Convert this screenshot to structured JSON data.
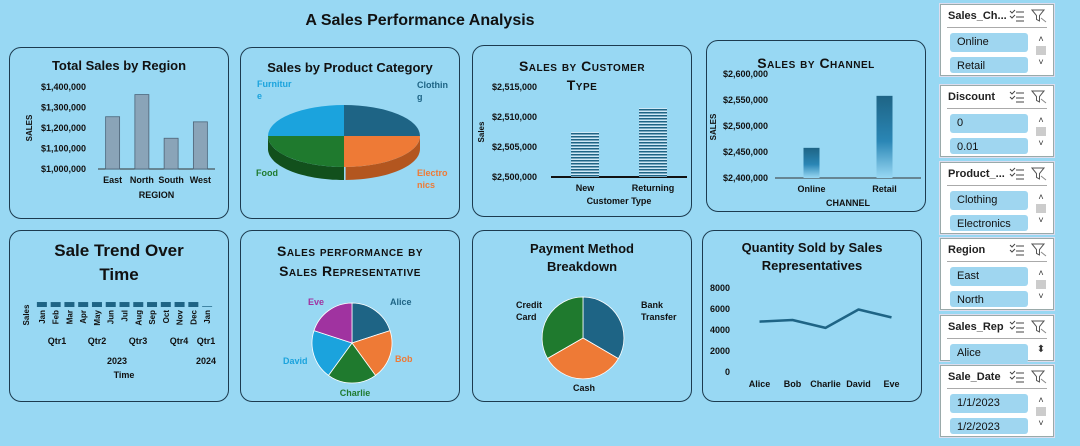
{
  "dashboard_title": "A Sales Performance Analysis",
  "colors": {
    "background": "#98d8f3",
    "bar_gray": "#8aa4b8",
    "dark_blue": "#1e6485",
    "orange": "#ee7a36",
    "green": "#1f7a2e",
    "sky": "#1ba3dd",
    "purple": "#a033a0"
  },
  "cards": {
    "region": {
      "title": "Total Sales by Region",
      "chart_data": {
        "type": "bar",
        "categories": [
          "East",
          "North",
          "South",
          "West"
        ],
        "values": [
          1255000,
          1363000,
          1150000,
          1230000
        ],
        "ylim": [
          1000000,
          1400000
        ],
        "yticks": [
          "$1,400,000",
          "$1,300,000",
          "$1,200,000",
          "$1,100,000",
          "$1,000,000"
        ],
        "xlabel": "REGION",
        "ylabel": "SALES"
      }
    },
    "product": {
      "title": "Sales by Product Category",
      "chart_data": {
        "type": "pie",
        "labels": [
          "Clothing",
          "Electronics",
          "Food",
          "Furniture"
        ],
        "label_lines": [
          [
            "Clothin",
            "g"
          ],
          [
            "Electro",
            "nics"
          ],
          [
            "Food"
          ],
          [
            "Furnitur",
            "e"
          ]
        ],
        "values": [
          25,
          25,
          25,
          25
        ],
        "colors": [
          "#1e6485",
          "#ee7a36",
          "#1f7a2e",
          "#1ba3dd"
        ]
      }
    },
    "customer": {
      "title_line1": "Sales by Customer",
      "title_line2": "Type",
      "chart_data": {
        "type": "bar",
        "categories": [
          "New",
          "Returning"
        ],
        "values": [
          2507500,
          2511500
        ],
        "ylim": [
          2500000,
          2515000
        ],
        "yticks": [
          "$2,515,000",
          "$2,510,000",
          "$2,505,000",
          "$2,500,000"
        ],
        "xlabel": "Customer Type",
        "ylabel": "Sales"
      }
    },
    "channel": {
      "title": "Sales by Channel",
      "chart_data": {
        "type": "bar",
        "categories": [
          "Online",
          "Retail"
        ],
        "values": [
          2458000,
          2558000
        ],
        "ylim": [
          2400000,
          2600000
        ],
        "yticks": [
          "$2,600,000",
          "$2,550,000",
          "$2,500,000",
          "$2,450,000",
          "$2,400,000"
        ],
        "xlabel": "CHANNEL",
        "ylabel": "SALES"
      }
    },
    "trend": {
      "title_line1": "Sale Trend Over",
      "title_line2": "Time",
      "chart_data": {
        "type": "bar",
        "categories": [
          "Jan",
          "Feb",
          "Mar",
          "Apr",
          "May",
          "Jun",
          "Jul",
          "Aug",
          "Sep",
          "Oct",
          "Nov",
          "Dec",
          "Jan"
        ],
        "values": [
          420000,
          415000,
          418000,
          417000,
          416000,
          419000,
          418000,
          415000,
          417000,
          420000,
          421000,
          418000,
          60000
        ],
        "quarters": [
          "Qtr1",
          "Qtr2",
          "Qtr3",
          "Qtr4",
          "Qtr1"
        ],
        "years": [
          "2023",
          "2024"
        ],
        "xlabel": "Time",
        "ylabel": "Sales"
      }
    },
    "rep": {
      "title_line1": "Sales performance by",
      "title_line2": "Sales Representative",
      "chart_data": {
        "type": "pie",
        "labels": [
          "Alice",
          "Bob",
          "Charlie",
          "David",
          "Eve"
        ],
        "values": [
          20,
          20,
          20,
          20,
          20
        ],
        "colors": [
          "#1e6485",
          "#ee7a36",
          "#1f7a2e",
          "#1ba3dd",
          "#a033a0"
        ]
      }
    },
    "payment": {
      "title_line1": "Payment Method",
      "title_line2": "Breakdown",
      "chart_data": {
        "type": "pie",
        "labels": [
          "Bank Transfer",
          "Cash",
          "Credit Card"
        ],
        "label_lines": [
          [
            "Bank",
            "Transfer"
          ],
          [
            "Cash"
          ],
          [
            "Credit",
            "Card"
          ]
        ],
        "values": [
          33.4,
          33.3,
          33.3
        ],
        "colors": [
          "#1e6485",
          "#ee7a36",
          "#1f7a2e"
        ]
      }
    },
    "quantity": {
      "title_line1": "Quantity Sold by Sales",
      "title_line2": "Representatives",
      "chart_data": {
        "type": "line",
        "categories": [
          "Alice",
          "Bob",
          "Charlie",
          "David",
          "Eve"
        ],
        "values": [
          4800,
          4950,
          4200,
          5950,
          5200
        ],
        "ylim": [
          0,
          8000
        ],
        "yticks": [
          "8000",
          "6000",
          "4000",
          "2000",
          "0"
        ]
      }
    }
  },
  "slicers": [
    {
      "title": "Sales_Ch...",
      "items": [
        "Online",
        "Retail"
      ]
    },
    {
      "title": "Discount",
      "items": [
        "0",
        "0.01"
      ]
    },
    {
      "title": "Product_...",
      "items": [
        "Clothing",
        "Electronics"
      ]
    },
    {
      "title": "Region",
      "items": [
        "East",
        "North"
      ]
    },
    {
      "title": "Sales_Rep",
      "items": [
        "Alice"
      ]
    },
    {
      "title": "Sale_Date",
      "items": [
        "1/1/2023",
        "1/2/2023"
      ]
    }
  ]
}
